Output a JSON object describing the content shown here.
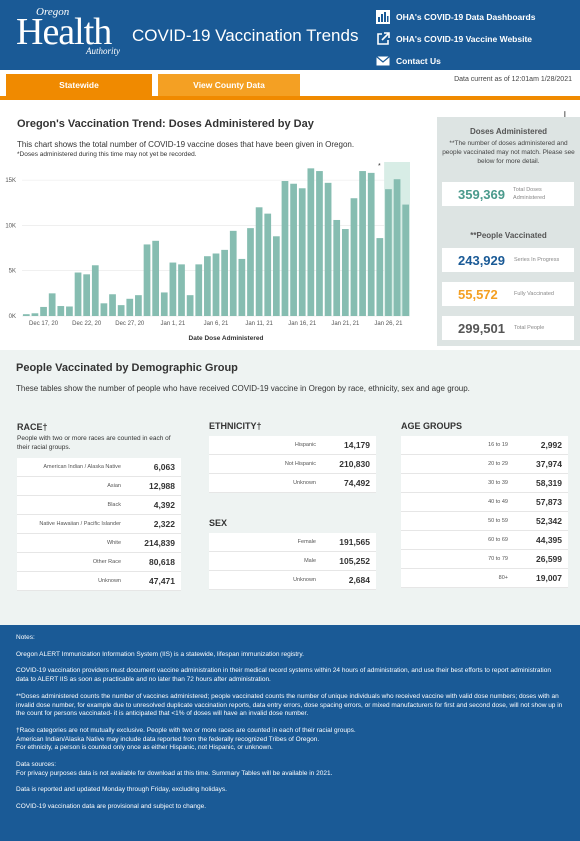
{
  "header": {
    "logo_oregon": "Oregon",
    "logo_health": "Health",
    "logo_authority": "Authority",
    "title": "COVID-19 Vaccination Trends",
    "links": [
      {
        "label": "OHA's COVID-19 Data Dashboards",
        "icon": "bar-chart-icon"
      },
      {
        "label": "OHA's COVID-19 Vaccine Website",
        "icon": "external-link-icon"
      },
      {
        "label": "Contact Us",
        "icon": "envelope-icon"
      }
    ]
  },
  "tabs": {
    "statewide": "Statewide",
    "county": "View County Data"
  },
  "data_current": "Data current as of 12:01am 1/28/2021",
  "trend": {
    "title": "Oregon's Vaccination Trend: Doses Administered by Day",
    "description": "This chart shows the total number of COVID-19 vaccine doses that have been given in Oregon.",
    "note": "*Doses administered during this time may not yet be recorded.",
    "marker": "*"
  },
  "chart_data": {
    "type": "bar",
    "xlabel": "Date Dose Administered",
    "ylabel": "",
    "ylim": [
      0,
      17000
    ],
    "yticks": [
      0,
      5000,
      10000,
      15000
    ],
    "ytick_labels": [
      "0K",
      "5K",
      "10K",
      "15K"
    ],
    "xtick_labels": [
      "Dec 17, 20",
      "Dec 22, 20",
      "Dec 27, 20",
      "Jan 1, 21",
      "Jan 6, 21",
      "Jan 11, 21",
      "Jan 16, 21",
      "Jan 21, 21",
      "Jan 26, 21"
    ],
    "xtick_start_index": 2,
    "xtick_step": 5,
    "highlight_last_n": 3,
    "bar_color": "#86bdb1",
    "highlight_color": "#d8ede6",
    "values": [
      200,
      300,
      1000,
      2500,
      1100,
      1050,
      4800,
      4600,
      5600,
      1400,
      2400,
      1200,
      1900,
      2300,
      7900,
      8300,
      2600,
      5900,
      5700,
      2300,
      5700,
      6600,
      6900,
      7300,
      9400,
      6300,
      9700,
      12000,
      11300,
      8800,
      14900,
      14600,
      14100,
      16300,
      16000,
      14700,
      10600,
      9600,
      13000,
      16000,
      15800,
      8600,
      14000,
      15100,
      12300
    ]
  },
  "doses_panel": {
    "heading": "Doses Administered",
    "note": "**The number of doses administered and people vaccinated may not match. Please see below for more detail.",
    "total_doses": {
      "value": "359,369",
      "label": "Total Doses Administered"
    },
    "people_heading": "**People Vaccinated",
    "in_progress": {
      "value": "243,929",
      "label": "Series In Progress"
    },
    "fully": {
      "value": "55,572",
      "label": "Fully Vaccinated"
    },
    "total_people": {
      "value": "299,501",
      "label": "Total People"
    },
    "colors": {
      "teal": "#4a9a8c",
      "blue": "#1a5a96",
      "orange": "#f4a023",
      "gray": "#555555"
    }
  },
  "demographics": {
    "title": "People Vaccinated by Demographic Group",
    "description": "These tables show the number of people who have received COVID-19 vaccine in Oregon by race, ethnicity, sex and age group.",
    "race": {
      "title": "RACE†",
      "note": "People with two or more races are counted in each of their racial groups.",
      "rows": [
        {
          "label": "American Indian / Alaska Native",
          "value": "6,063"
        },
        {
          "label": "Asian",
          "value": "12,988"
        },
        {
          "label": "Black",
          "value": "4,392"
        },
        {
          "label": "Native Hawaiian / Pacific Islander",
          "value": "2,322"
        },
        {
          "label": "White",
          "value": "214,839"
        },
        {
          "label": "Other Race",
          "value": "80,618"
        },
        {
          "label": "Unknown",
          "value": "47,471"
        }
      ]
    },
    "ethnicity": {
      "title": "ETHNICITY†",
      "rows": [
        {
          "label": "Hispanic",
          "value": "14,179"
        },
        {
          "label": "Not Hispanic",
          "value": "210,830"
        },
        {
          "label": "Unknown",
          "value": "74,492"
        }
      ]
    },
    "sex": {
      "title": "SEX",
      "rows": [
        {
          "label": "Female",
          "value": "191,565"
        },
        {
          "label": "Male",
          "value": "105,252"
        },
        {
          "label": "Unknown",
          "value": "2,684"
        }
      ]
    },
    "age": {
      "title": "AGE GROUPS",
      "rows": [
        {
          "label": "16 to 19",
          "value": "2,992"
        },
        {
          "label": "20 to 29",
          "value": "37,974"
        },
        {
          "label": "30 to 39",
          "value": "58,319"
        },
        {
          "label": "40 to 49",
          "value": "57,873"
        },
        {
          "label": "50 to 59",
          "value": "52,342"
        },
        {
          "label": "60 to 69",
          "value": "44,395"
        },
        {
          "label": "70 to 79",
          "value": "26,599"
        },
        {
          "label": "80+",
          "value": "19,007"
        }
      ]
    }
  },
  "notes": {
    "heading": "Notes:",
    "p1": "Oregon ALERT Immunization Information System (IIS) is a statewide, lifespan immunization registry.",
    "p2": "COVID-19 vaccination providers must document vaccine administration in their medical record systems within 24 hours of administration, and use their best efforts to report administration data to ALERT IIS as soon as practicable and no later than 72 hours after administration.",
    "p3": "**Doses administered counts the number of vaccines administered; people vaccinated counts the number of unique individuals who received vaccine with valid dose numbers; doses with an invalid dose number, for example due to unresolved duplicate vaccination reports, data entry errors, dose spacing errors, or mixed manufacturers for first and second dose, will not show up in the count for persons vaccinated- it is anticipated that <1% of doses will have an invalid dose number.",
    "p4a": "†Race categories are not mutually exclusive. People with two or more races are counted in each of their racial groups.",
    "p4b": "American Indian/Alaska Native may include data reported from the federally recognized Tribes of Oregon.",
    "p4c": "For ethnicity, a person is counted only once as either Hispanic, not Hispanic, or unknown.",
    "p5a": "Data sources:",
    "p5b": "For privacy purposes data is not available for download at this time. Summary Tables will be available in 2021.",
    "p6": "Data is reported and updated Monday through Friday, excluding holidays.",
    "p7": "COVID-19 vaccination data are provisional and subject to change."
  }
}
